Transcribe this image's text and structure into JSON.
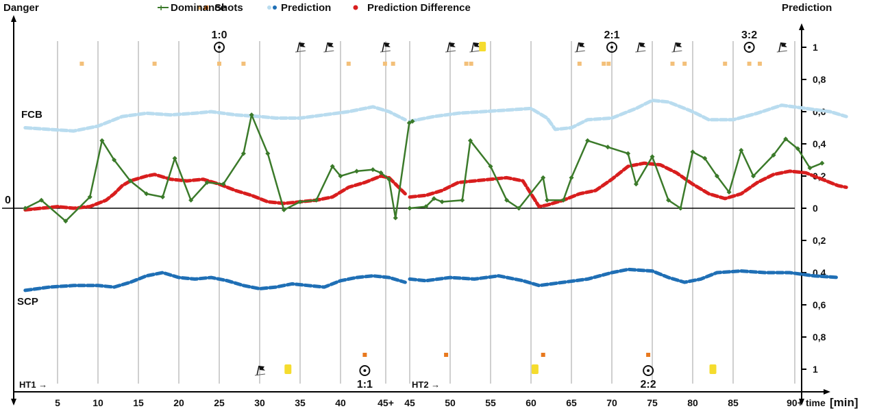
{
  "chart_data": {
    "type": "line",
    "title": "",
    "legend": {
      "placement": "top",
      "items": [
        {
          "name": "Shots",
          "marker": "square-pair",
          "colors": [
            "#f3c07a",
            "#e8791e"
          ]
        },
        {
          "name": "Dominance",
          "marker": "diamond-line",
          "colors": [
            "#3b7a2a"
          ]
        },
        {
          "name": "Prediction",
          "marker": "dot-pair",
          "colors": [
            "#b9dcef",
            "#1f6fb5"
          ]
        },
        {
          "name": "Prediction Difference",
          "marker": "dot",
          "colors": [
            "#d81e1e"
          ]
        }
      ]
    },
    "left_axis": {
      "label": "Danger",
      "zero_label": "0"
    },
    "right_axis": {
      "label": "Prediction",
      "ticks_up": [
        "1",
        "0,8",
        "0,6",
        "0,4",
        "0,2",
        "0"
      ],
      "ticks_down": [
        "0,2",
        "0,4",
        "0,6",
        "0,8",
        "1"
      ],
      "range": [
        0,
        1
      ]
    },
    "x_axis": {
      "label_prefix": "time",
      "label_unit": "[min]",
      "ticks_ht1": [
        "5",
        "10",
        "15",
        "20",
        "25",
        "30",
        "35",
        "40",
        "45+"
      ],
      "ticks_ht2": [
        "45",
        "50",
        "55",
        "60",
        "65",
        "70",
        "75",
        "80",
        "85",
        "90+"
      ]
    },
    "team_labels": {
      "top": "FCB",
      "bottom": "SCP"
    },
    "half_labels": {
      "ht1": "HT1 →",
      "ht2": "HT2 →"
    },
    "goals_top": [
      {
        "minute": 25,
        "half": 1,
        "score": "1:0"
      },
      {
        "minute": 70,
        "half": 2,
        "score": "2:1"
      },
      {
        "minute": 87,
        "half": 2,
        "score": "3:2"
      }
    ],
    "goals_bottom": [
      {
        "minute": 43,
        "half": 1,
        "score": "1:1"
      },
      {
        "minute": 74.5,
        "half": 2,
        "score": "2:2"
      }
    ],
    "corners_top": [
      {
        "minute": 35,
        "half": 1
      },
      {
        "minute": 38.5,
        "half": 1
      },
      {
        "minute": 45.5,
        "half": 1
      },
      {
        "minute": 50,
        "half": 2
      },
      {
        "minute": 53,
        "half": 2
      },
      {
        "minute": 66,
        "half": 2
      },
      {
        "minute": 73.5,
        "half": 2
      },
      {
        "minute": 78,
        "half": 2
      },
      {
        "minute": 91,
        "half": 2
      }
    ],
    "corners_bottom": [
      {
        "minute": 30,
        "half": 1
      }
    ],
    "yellow_cards_top": [
      {
        "minute": 54,
        "half": 2
      }
    ],
    "yellow_cards_bottom": [
      {
        "minute": 33.5,
        "half": 1
      },
      {
        "minute": 60.5,
        "half": 2
      },
      {
        "minute": 82.5,
        "half": 2
      }
    ],
    "shots_top": [
      {
        "minute": 8,
        "half": 1
      },
      {
        "minute": 17,
        "half": 1
      },
      {
        "minute": 25,
        "half": 1
      },
      {
        "minute": 28,
        "half": 1
      },
      {
        "minute": 41,
        "half": 1
      },
      {
        "minute": 45.5,
        "half": 1
      },
      {
        "minute": 46.5,
        "half": 1
      },
      {
        "minute": 52,
        "half": 2
      },
      {
        "minute": 52.6,
        "half": 2
      },
      {
        "minute": 66,
        "half": 2
      },
      {
        "minute": 69,
        "half": 2
      },
      {
        "minute": 69.6,
        "half": 2
      },
      {
        "minute": 77.5,
        "half": 2
      },
      {
        "minute": 79,
        "half": 2
      },
      {
        "minute": 84,
        "half": 2
      },
      {
        "minute": 87,
        "half": 2
      },
      {
        "minute": 88.3,
        "half": 2
      }
    ],
    "shots_bottom": [
      {
        "minute": 43,
        "half": 1
      },
      {
        "minute": 49.5,
        "half": 2
      },
      {
        "minute": 61.5,
        "half": 2
      },
      {
        "minute": 74.5,
        "half": 2
      }
    ],
    "series": [
      {
        "name": "Dominance",
        "color": "#3b7a2a",
        "half1": [
          [
            1,
            0
          ],
          [
            3,
            0.05
          ],
          [
            6,
            -0.08
          ],
          [
            9,
            0.07
          ],
          [
            10.5,
            0.42
          ],
          [
            12,
            0.3
          ],
          [
            14,
            0.17
          ],
          [
            16,
            0.09
          ],
          [
            18,
            0.07
          ],
          [
            19.5,
            0.31
          ],
          [
            21.5,
            0.05
          ],
          [
            23.5,
            0.16
          ],
          [
            25.5,
            0.15
          ],
          [
            28,
            0.34
          ],
          [
            29,
            0.58
          ],
          [
            31,
            0.34
          ],
          [
            33,
            -0.01
          ],
          [
            35,
            0.04
          ],
          [
            37,
            0.05
          ],
          [
            39,
            0.26
          ],
          [
            40,
            0.2
          ],
          [
            42,
            0.23
          ],
          [
            44,
            0.24
          ],
          [
            45,
            0.22
          ],
          [
            46,
            0.18
          ],
          [
            46.8,
            -0.06
          ],
          [
            48.5,
            0.53
          ],
          [
            48.9,
            0.54
          ]
        ],
        "half2": [
          [
            45,
            0
          ],
          [
            47,
            0.01
          ],
          [
            48,
            0.06
          ],
          [
            49,
            0.04
          ],
          [
            51.5,
            0.05
          ],
          [
            52.5,
            0.42
          ],
          [
            55,
            0.26
          ],
          [
            57,
            0.05
          ],
          [
            58.5,
            0
          ],
          [
            61.5,
            0.19
          ],
          [
            62,
            0.05
          ],
          [
            64,
            0.05
          ],
          [
            65,
            0.19
          ],
          [
            67,
            0.42
          ],
          [
            69.5,
            0.38
          ],
          [
            72,
            0.34
          ],
          [
            73,
            0.15
          ],
          [
            75,
            0.32
          ],
          [
            77,
            0.05
          ],
          [
            78.5,
            0
          ],
          [
            80,
            0.35
          ],
          [
            81.5,
            0.31
          ],
          [
            83,
            0.2
          ],
          [
            84.5,
            0.1
          ],
          [
            86,
            0.36
          ],
          [
            87.5,
            0.2
          ],
          [
            90,
            0.33
          ],
          [
            91.5,
            0.43
          ],
          [
            93,
            0.37
          ],
          [
            94.5,
            0.25
          ],
          [
            96,
            0.28
          ]
        ]
      },
      {
        "name": "Prediction Difference",
        "color": "#d81e1e",
        "half1": [
          [
            1,
            -0.01
          ],
          [
            3,
            0
          ],
          [
            5,
            0.01
          ],
          [
            7,
            0
          ],
          [
            9,
            0.01
          ],
          [
            11,
            0.05
          ],
          [
            12,
            0.09
          ],
          [
            13,
            0.14
          ],
          [
            14,
            0.17
          ],
          [
            16,
            0.2
          ],
          [
            17,
            0.21
          ],
          [
            19,
            0.18
          ],
          [
            21,
            0.17
          ],
          [
            23,
            0.18
          ],
          [
            25,
            0.15
          ],
          [
            27,
            0.11
          ],
          [
            29,
            0.08
          ],
          [
            31,
            0.04
          ],
          [
            33,
            0.03
          ],
          [
            35,
            0.04
          ],
          [
            37,
            0.05
          ],
          [
            39,
            0.07
          ],
          [
            41,
            0.13
          ],
          [
            43,
            0.16
          ],
          [
            45,
            0.2
          ],
          [
            46,
            0.19
          ],
          [
            47,
            0.14
          ],
          [
            48,
            0.09
          ]
        ],
        "half2": [
          [
            45,
            0.07
          ],
          [
            47,
            0.08
          ],
          [
            49,
            0.11
          ],
          [
            51,
            0.16
          ],
          [
            53,
            0.17
          ],
          [
            55,
            0.18
          ],
          [
            57,
            0.19
          ],
          [
            59,
            0.17
          ],
          [
            60,
            0.09
          ],
          [
            61,
            0.01
          ],
          [
            62,
            0.02
          ],
          [
            64,
            0.05
          ],
          [
            66,
            0.09
          ],
          [
            68,
            0.11
          ],
          [
            70,
            0.18
          ],
          [
            72,
            0.26
          ],
          [
            74,
            0.28
          ],
          [
            76,
            0.27
          ],
          [
            78,
            0.22
          ],
          [
            80,
            0.15
          ],
          [
            82,
            0.09
          ],
          [
            84,
            0.06
          ],
          [
            86,
            0.09
          ],
          [
            88,
            0.16
          ],
          [
            90,
            0.21
          ],
          [
            92,
            0.23
          ],
          [
            94,
            0.22
          ],
          [
            96,
            0.18
          ],
          [
            98,
            0.14
          ],
          [
            99,
            0.13
          ]
        ]
      },
      {
        "name": "Prediction FCB",
        "color": "#b9dcef",
        "half1": [
          [
            1,
            0.5
          ],
          [
            4,
            0.49
          ],
          [
            7,
            0.48
          ],
          [
            10,
            0.51
          ],
          [
            13,
            0.57
          ],
          [
            16,
            0.59
          ],
          [
            19,
            0.58
          ],
          [
            22,
            0.59
          ],
          [
            24,
            0.6
          ],
          [
            27,
            0.58
          ],
          [
            30,
            0.57
          ],
          [
            32,
            0.56
          ],
          [
            35,
            0.56
          ],
          [
            38,
            0.58
          ],
          [
            41,
            0.6
          ],
          [
            44,
            0.63
          ],
          [
            46,
            0.6
          ],
          [
            48,
            0.55
          ]
        ],
        "half2": [
          [
            45,
            0.54
          ],
          [
            48,
            0.57
          ],
          [
            51,
            0.59
          ],
          [
            54,
            0.6
          ],
          [
            57,
            0.61
          ],
          [
            60,
            0.62
          ],
          [
            62,
            0.56
          ],
          [
            63,
            0.49
          ],
          [
            65,
            0.5
          ],
          [
            67,
            0.55
          ],
          [
            70,
            0.56
          ],
          [
            73,
            0.62
          ],
          [
            75,
            0.67
          ],
          [
            77,
            0.66
          ],
          [
            80,
            0.6
          ],
          [
            82,
            0.55
          ],
          [
            85,
            0.55
          ],
          [
            88,
            0.59
          ],
          [
            91,
            0.64
          ],
          [
            94,
            0.62
          ],
          [
            97,
            0.6
          ],
          [
            99,
            0.57
          ]
        ]
      },
      {
        "name": "Prediction SCP",
        "color": "#1f6fb5",
        "half1": [
          [
            1,
            0.51
          ],
          [
            4,
            0.49
          ],
          [
            7,
            0.48
          ],
          [
            10,
            0.48
          ],
          [
            12,
            0.49
          ],
          [
            14,
            0.46
          ],
          [
            16,
            0.42
          ],
          [
            18,
            0.4
          ],
          [
            20,
            0.43
          ],
          [
            22,
            0.44
          ],
          [
            24,
            0.43
          ],
          [
            26,
            0.45
          ],
          [
            28,
            0.48
          ],
          [
            30,
            0.5
          ],
          [
            32,
            0.49
          ],
          [
            34,
            0.47
          ],
          [
            36,
            0.48
          ],
          [
            38,
            0.49
          ],
          [
            40,
            0.45
          ],
          [
            42,
            0.43
          ],
          [
            44,
            0.42
          ],
          [
            46,
            0.43
          ],
          [
            48,
            0.46
          ]
        ],
        "half2": [
          [
            45,
            0.44
          ],
          [
            47,
            0.45
          ],
          [
            50,
            0.43
          ],
          [
            53,
            0.44
          ],
          [
            56,
            0.42
          ],
          [
            59,
            0.45
          ],
          [
            61,
            0.48
          ],
          [
            64,
            0.46
          ],
          [
            67,
            0.44
          ],
          [
            70,
            0.4
          ],
          [
            72,
            0.38
          ],
          [
            75,
            0.39
          ],
          [
            77,
            0.43
          ],
          [
            79,
            0.46
          ],
          [
            81,
            0.44
          ],
          [
            83,
            0.4
          ],
          [
            86,
            0.39
          ],
          [
            89,
            0.4
          ],
          [
            92,
            0.4
          ],
          [
            95,
            0.42
          ],
          [
            98,
            0.43
          ]
        ]
      }
    ]
  }
}
